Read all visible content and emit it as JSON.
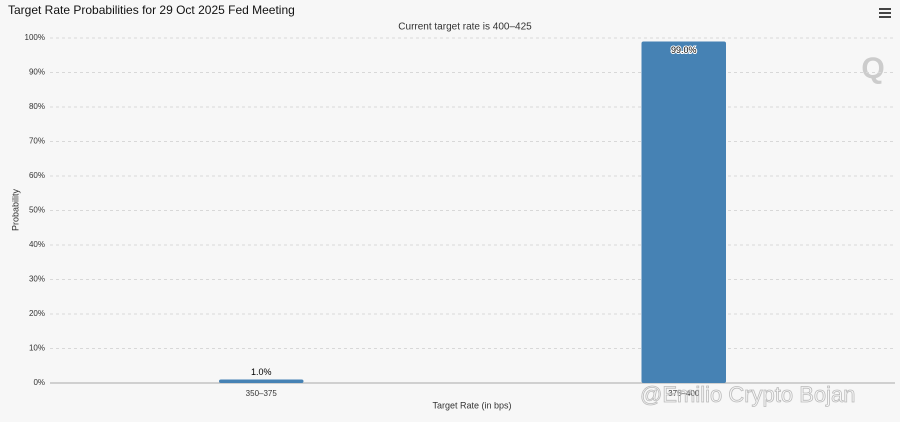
{
  "chart_data": {
    "type": "bar",
    "title": "Target Rate Probabilities for 29 Oct 2025 Fed Meeting",
    "subtitle": "Current target rate is 400–425",
    "x_label": "Target Rate (in bps)",
    "y_label": "Probability",
    "categories": [
      "350–375",
      "375–400"
    ],
    "values": [
      1.0,
      99.0
    ],
    "value_labels": [
      "1.0%",
      "99.0%"
    ],
    "color": "#4682b4",
    "ylim": [
      0,
      100
    ],
    "yticks": [
      {
        "value": 0,
        "label": "0%"
      },
      {
        "value": 10,
        "label": "10%"
      },
      {
        "value": 20,
        "label": "20%"
      },
      {
        "value": 30,
        "label": "30%"
      },
      {
        "value": 40,
        "label": "40%"
      },
      {
        "value": 50,
        "label": "50%"
      },
      {
        "value": 60,
        "label": "60%"
      },
      {
        "value": 70,
        "label": "70%"
      },
      {
        "value": 80,
        "label": "80%"
      },
      {
        "value": 90,
        "label": "90%"
      },
      {
        "value": 100,
        "label": "100%"
      }
    ],
    "grid": true,
    "watermark": "@Emilio Crypto Bojan"
  }
}
